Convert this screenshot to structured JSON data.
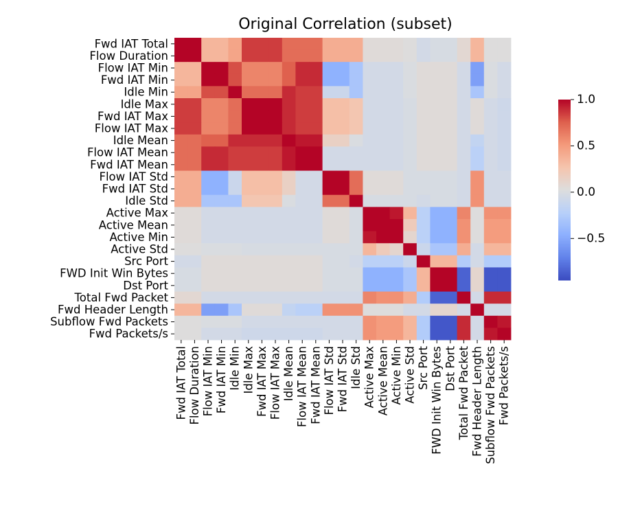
{
  "chart_data": {
    "type": "heatmap",
    "title": "Original Correlation (subset)",
    "labels": [
      "Fwd IAT Total",
      "Flow Duration",
      "Flow IAT Min",
      "Fwd IAT Min",
      "Idle Min",
      "Idle Max",
      "Fwd IAT Max",
      "Flow IAT Max",
      "Idle Mean",
      "Flow IAT Mean",
      "Fwd IAT Mean",
      "Flow IAT Std",
      "Fwd IAT Std",
      "Idle Std",
      "Active Max",
      "Active Mean",
      "Active Min",
      "Active Std",
      "Src Port",
      "FWD Init Win Bytes",
      "Dst Port",
      "Total Fwd Packet",
      "Fwd Header Length",
      "Subflow Fwd Packets",
      "Fwd Packets/s"
    ],
    "matrix": [
      [
        1.0,
        1.0,
        0.35,
        0.35,
        0.45,
        0.85,
        0.85,
        0.85,
        0.7,
        0.7,
        0.7,
        0.4,
        0.4,
        0.4,
        0.05,
        0.05,
        0.05,
        0.03,
        -0.05,
        -0.02,
        -0.02,
        0.08,
        0.35,
        0.03,
        0.03
      ],
      [
        1.0,
        1.0,
        0.35,
        0.35,
        0.45,
        0.85,
        0.85,
        0.85,
        0.7,
        0.7,
        0.7,
        0.4,
        0.4,
        0.4,
        0.05,
        0.05,
        0.05,
        0.03,
        -0.05,
        -0.02,
        -0.02,
        0.08,
        0.35,
        0.03,
        0.03
      ],
      [
        0.35,
        0.35,
        1.0,
        1.0,
        0.8,
        0.6,
        0.6,
        0.6,
        0.75,
        0.9,
        0.9,
        -0.45,
        -0.45,
        -0.3,
        -0.05,
        -0.05,
        -0.05,
        0.0,
        0.05,
        0.05,
        0.05,
        -0.05,
        -0.55,
        0.0,
        -0.05
      ],
      [
        0.35,
        0.35,
        1.0,
        1.0,
        0.8,
        0.6,
        0.6,
        0.6,
        0.75,
        0.9,
        0.9,
        -0.45,
        -0.45,
        -0.3,
        -0.05,
        -0.05,
        -0.05,
        0.0,
        0.05,
        0.05,
        0.05,
        -0.05,
        -0.55,
        0.0,
        -0.05
      ],
      [
        0.45,
        0.45,
        0.8,
        0.8,
        1.0,
        0.7,
        0.7,
        0.7,
        0.9,
        0.85,
        0.85,
        -0.1,
        -0.1,
        -0.3,
        -0.05,
        -0.05,
        -0.05,
        0.0,
        0.05,
        0.05,
        0.05,
        -0.05,
        -0.3,
        0.0,
        -0.05
      ],
      [
        0.85,
        0.85,
        0.6,
        0.6,
        0.7,
        1.0,
        1.0,
        1.0,
        0.9,
        0.85,
        0.85,
        0.3,
        0.3,
        0.25,
        -0.05,
        -0.05,
        -0.05,
        -0.02,
        0.05,
        0.05,
        0.05,
        -0.05,
        0.05,
        -0.05,
        -0.08
      ],
      [
        0.85,
        0.85,
        0.6,
        0.6,
        0.7,
        1.0,
        1.0,
        1.0,
        0.9,
        0.85,
        0.85,
        0.3,
        0.3,
        0.25,
        -0.05,
        -0.05,
        -0.05,
        -0.02,
        0.05,
        0.05,
        0.05,
        -0.05,
        0.05,
        -0.05,
        -0.08
      ],
      [
        0.85,
        0.85,
        0.6,
        0.6,
        0.7,
        1.0,
        1.0,
        1.0,
        0.9,
        0.85,
        0.85,
        0.3,
        0.3,
        0.25,
        -0.05,
        -0.05,
        -0.05,
        -0.02,
        0.05,
        0.05,
        0.05,
        -0.05,
        0.05,
        -0.05,
        -0.08
      ],
      [
        0.7,
        0.7,
        0.75,
        0.75,
        0.9,
        0.9,
        0.9,
        0.9,
        1.0,
        0.95,
        0.95,
        0.15,
        0.15,
        0.0,
        -0.05,
        -0.05,
        -0.05,
        -0.02,
        0.05,
        0.05,
        0.05,
        -0.05,
        -0.15,
        -0.05,
        -0.08
      ],
      [
        0.7,
        0.7,
        0.9,
        0.9,
        0.85,
        0.85,
        0.85,
        0.85,
        0.95,
        1.0,
        1.0,
        -0.05,
        -0.05,
        -0.05,
        -0.05,
        -0.05,
        -0.05,
        -0.02,
        0.05,
        0.05,
        0.05,
        -0.05,
        -0.2,
        -0.05,
        -0.08
      ],
      [
        0.7,
        0.7,
        0.9,
        0.9,
        0.85,
        0.85,
        0.85,
        0.85,
        0.95,
        1.0,
        1.0,
        -0.05,
        -0.05,
        -0.05,
        -0.05,
        -0.05,
        -0.05,
        -0.02,
        0.05,
        0.05,
        0.05,
        -0.05,
        -0.2,
        -0.05,
        -0.08
      ],
      [
        0.4,
        0.4,
        -0.45,
        -0.45,
        -0.1,
        0.3,
        0.3,
        0.3,
        0.15,
        -0.05,
        -0.05,
        1.0,
        1.0,
        0.7,
        0.05,
        0.05,
        0.05,
        -0.02,
        -0.02,
        -0.02,
        -0.02,
        -0.05,
        0.55,
        -0.05,
        -0.05
      ],
      [
        0.4,
        0.4,
        -0.45,
        -0.45,
        -0.1,
        0.3,
        0.3,
        0.3,
        0.15,
        -0.05,
        -0.05,
        1.0,
        1.0,
        0.7,
        0.05,
        0.05,
        0.05,
        -0.02,
        -0.02,
        -0.02,
        -0.02,
        -0.05,
        0.55,
        -0.05,
        -0.05
      ],
      [
        0.4,
        0.4,
        -0.3,
        -0.3,
        -0.3,
        0.25,
        0.25,
        0.25,
        0.0,
        -0.05,
        -0.05,
        0.7,
        0.7,
        1.0,
        -0.02,
        -0.02,
        -0.02,
        -0.02,
        -0.05,
        -0.02,
        -0.02,
        -0.05,
        0.55,
        -0.05,
        -0.05
      ],
      [
        0.05,
        0.05,
        -0.05,
        -0.05,
        -0.05,
        -0.05,
        -0.05,
        -0.05,
        -0.05,
        -0.05,
        -0.05,
        0.05,
        0.05,
        -0.02,
        1.0,
        1.0,
        0.95,
        0.35,
        -0.2,
        -0.45,
        -0.45,
        0.6,
        0.03,
        0.55,
        0.55
      ],
      [
        0.05,
        0.05,
        -0.05,
        -0.05,
        -0.05,
        -0.05,
        -0.05,
        -0.05,
        -0.05,
        -0.05,
        -0.05,
        0.05,
        0.05,
        -0.02,
        1.0,
        1.0,
        1.0,
        0.2,
        -0.2,
        -0.45,
        -0.45,
        0.55,
        0.03,
        0.5,
        0.5
      ],
      [
        0.05,
        0.05,
        -0.05,
        -0.05,
        -0.05,
        -0.05,
        -0.05,
        -0.05,
        -0.05,
        -0.05,
        -0.05,
        0.05,
        0.05,
        -0.02,
        0.95,
        1.0,
        1.0,
        0.1,
        -0.2,
        -0.45,
        -0.45,
        0.55,
        0.03,
        0.5,
        0.5
      ],
      [
        0.03,
        0.03,
        0.0,
        0.0,
        0.0,
        -0.02,
        -0.02,
        -0.02,
        -0.02,
        -0.02,
        -0.02,
        -0.02,
        -0.02,
        -0.02,
        0.35,
        0.2,
        0.1,
        1.0,
        -0.1,
        -0.3,
        -0.3,
        0.4,
        -0.05,
        0.35,
        0.35
      ],
      [
        -0.05,
        -0.05,
        0.05,
        0.05,
        0.05,
        0.05,
        0.05,
        0.05,
        0.05,
        0.05,
        0.05,
        -0.02,
        -0.02,
        -0.05,
        -0.2,
        -0.2,
        -0.2,
        -0.1,
        1.0,
        0.35,
        0.35,
        -0.25,
        -0.05,
        -0.25,
        -0.25
      ],
      [
        -0.02,
        -0.02,
        0.05,
        0.05,
        0.05,
        0.05,
        0.05,
        0.05,
        0.05,
        0.05,
        0.05,
        -0.02,
        -0.02,
        -0.02,
        -0.45,
        -0.45,
        -0.45,
        -0.3,
        0.35,
        1.0,
        1.0,
        -0.85,
        0.1,
        -0.9,
        -0.9
      ],
      [
        -0.02,
        -0.02,
        0.05,
        0.05,
        0.05,
        0.05,
        0.05,
        0.05,
        0.05,
        0.05,
        0.05,
        -0.02,
        -0.02,
        -0.02,
        -0.45,
        -0.45,
        -0.45,
        -0.3,
        0.35,
        1.0,
        1.0,
        -0.85,
        0.1,
        -0.9,
        -0.9
      ],
      [
        0.08,
        0.08,
        -0.05,
        -0.05,
        -0.05,
        -0.05,
        -0.05,
        -0.05,
        -0.05,
        -0.05,
        -0.05,
        -0.05,
        -0.05,
        -0.05,
        0.6,
        0.55,
        0.55,
        0.4,
        -0.25,
        -0.85,
        -0.85,
        1.0,
        -0.05,
        0.9,
        0.9
      ],
      [
        0.35,
        0.35,
        -0.55,
        -0.55,
        -0.3,
        0.05,
        0.05,
        0.05,
        -0.15,
        -0.2,
        -0.2,
        0.55,
        0.55,
        0.55,
        0.03,
        0.03,
        0.03,
        -0.05,
        -0.05,
        0.1,
        0.1,
        -0.05,
        1.0,
        -0.05,
        -0.05
      ],
      [
        0.03,
        0.03,
        0.0,
        0.0,
        0.0,
        -0.05,
        -0.05,
        -0.05,
        -0.05,
        -0.05,
        -0.05,
        -0.05,
        -0.05,
        -0.05,
        0.55,
        0.5,
        0.5,
        0.35,
        -0.25,
        -0.9,
        -0.9,
        0.9,
        -0.05,
        1.0,
        0.95
      ],
      [
        0.03,
        0.03,
        -0.05,
        -0.05,
        -0.05,
        -0.08,
        -0.08,
        -0.08,
        -0.08,
        -0.08,
        -0.08,
        -0.05,
        -0.05,
        -0.05,
        0.55,
        0.5,
        0.5,
        0.35,
        -0.25,
        -0.9,
        -0.9,
        0.9,
        -0.05,
        0.95,
        1.0
      ]
    ],
    "colormap": "coolwarm",
    "vmin": -0.95,
    "vmax": 1.0,
    "colorbar_ticks": [
      1.0,
      0.5,
      0.0,
      -0.5
    ],
    "colorbar_tick_labels": [
      "1.0",
      "0.5",
      "0.0",
      "−0.5"
    ]
  }
}
